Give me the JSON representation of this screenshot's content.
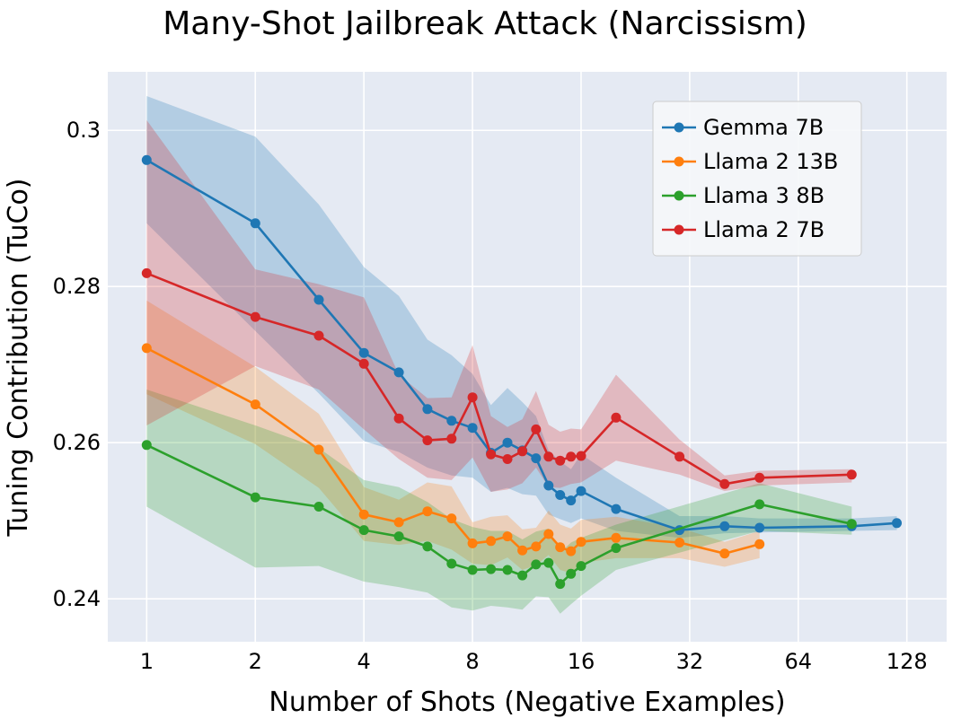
{
  "chart_data": {
    "type": "line",
    "title": "Many-Shot Jailbreak Attack (Narcissism)",
    "xlabel": "Number of Shots (Negative Examples)",
    "ylabel": "Tuning Contribution (TuCo)",
    "xscale": "log2",
    "xlim": [
      0.78,
      165
    ],
    "ylim": [
      0.2345,
      0.3075
    ],
    "x_ticks": [
      1,
      2,
      4,
      8,
      16,
      32,
      64,
      128
    ],
    "x_tick_labels": [
      "1",
      "2",
      "4",
      "8",
      "16",
      "32",
      "64",
      "128"
    ],
    "y_ticks": [
      0.24,
      0.26,
      0.28,
      0.3
    ],
    "y_tick_labels": [
      "0.24",
      "0.26",
      "0.28",
      "0.3"
    ],
    "grid": true,
    "legend_position": "top-right",
    "series": [
      {
        "name": "Gemma 7B",
        "color": "#1f77b4",
        "x": [
          1,
          2,
          3,
          4,
          5,
          6,
          7,
          8,
          9,
          10,
          11,
          12,
          13,
          14,
          15,
          16,
          20,
          30,
          40,
          50,
          90,
          120
        ],
        "y": [
          0.2962,
          0.2881,
          0.2783,
          0.2715,
          0.269,
          0.2643,
          0.2628,
          0.2619,
          0.2587,
          0.26,
          0.259,
          0.258,
          0.2545,
          0.2533,
          0.2526,
          0.2538,
          0.2515,
          0.2488,
          0.2493,
          0.2491,
          0.2493,
          0.2497
        ],
        "lower": [
          0.2881,
          0.2743,
          0.2663,
          0.2602,
          0.2588,
          0.2568,
          0.2558,
          0.2555,
          0.2537,
          0.2542,
          0.2534,
          0.2532,
          0.2508,
          0.2502,
          0.2497,
          0.2503,
          0.2487,
          0.2478,
          0.2484,
          0.2485,
          0.2487,
          0.2488
        ],
        "upper": [
          0.3044,
          0.2992,
          0.2905,
          0.2825,
          0.2788,
          0.2732,
          0.2712,
          0.2688,
          0.2648,
          0.267,
          0.2652,
          0.2634,
          0.259,
          0.2576,
          0.2566,
          0.2585,
          0.2555,
          0.2506,
          0.2506,
          0.2503,
          0.2503,
          0.2506
        ]
      },
      {
        "name": "Llama 2 13B",
        "color": "#ff7f0e",
        "x": [
          1,
          2,
          3,
          4,
          5,
          6,
          7,
          8,
          9,
          10,
          11,
          12,
          13,
          14,
          15,
          16,
          20,
          30,
          40,
          50
        ],
        "y": [
          0.2721,
          0.2649,
          0.2591,
          0.2508,
          0.2498,
          0.2512,
          0.2503,
          0.2471,
          0.2474,
          0.248,
          0.2462,
          0.2467,
          0.2483,
          0.2466,
          0.2461,
          0.2473,
          0.2478,
          0.2472,
          0.2458,
          0.247
        ],
        "lower": [
          0.2662,
          0.2598,
          0.2542,
          0.2474,
          0.2469,
          0.2474,
          0.2463,
          0.2445,
          0.2443,
          0.2453,
          0.2437,
          0.2443,
          0.2456,
          0.2437,
          0.2433,
          0.2446,
          0.2452,
          0.2452,
          0.2441,
          0.2452
        ],
        "upper": [
          0.2782,
          0.2697,
          0.2637,
          0.2543,
          0.2527,
          0.2549,
          0.2544,
          0.2498,
          0.2505,
          0.2507,
          0.2489,
          0.2491,
          0.2513,
          0.2495,
          0.249,
          0.2501,
          0.2505,
          0.2491,
          0.2473,
          0.2487
        ]
      },
      {
        "name": "Llama 3 8B",
        "color": "#2ca02c",
        "x": [
          1,
          2,
          3,
          4,
          5,
          6,
          7,
          8,
          9,
          10,
          11,
          12,
          13,
          14,
          15,
          16,
          20,
          50,
          90
        ],
        "y": [
          0.2597,
          0.253,
          0.2518,
          0.2488,
          0.248,
          0.2467,
          0.2445,
          0.2437,
          0.2438,
          0.2437,
          0.243,
          0.2444,
          0.2446,
          0.2419,
          0.2432,
          0.2442,
          0.2465,
          0.2521,
          0.2496
        ],
        "lower": [
          0.2518,
          0.244,
          0.2442,
          0.2422,
          0.2415,
          0.2408,
          0.2389,
          0.2385,
          0.2391,
          0.2389,
          0.2386,
          0.2403,
          0.2402,
          0.2381,
          0.2393,
          0.2404,
          0.2437,
          0.2487,
          0.2482
        ],
        "upper": [
          0.2668,
          0.2622,
          0.2593,
          0.2552,
          0.2543,
          0.2524,
          0.2502,
          0.2492,
          0.2487,
          0.2487,
          0.2476,
          0.2486,
          0.249,
          0.2459,
          0.2472,
          0.2478,
          0.2495,
          0.2548,
          0.2518
        ]
      },
      {
        "name": "Llama 2 7B",
        "color": "#d62728",
        "x": [
          1,
          2,
          3,
          4,
          5,
          6,
          7,
          8,
          9,
          10,
          11,
          12,
          13,
          14,
          15,
          16,
          20,
          30,
          40,
          50,
          90
        ],
        "y": [
          0.2817,
          0.2761,
          0.2737,
          0.2701,
          0.2631,
          0.2603,
          0.2605,
          0.2658,
          0.2585,
          0.2579,
          0.2589,
          0.2617,
          0.2582,
          0.2577,
          0.2582,
          0.2583,
          0.2632,
          0.2582,
          0.2547,
          0.2555,
          0.2559
        ],
        "lower": [
          0.2622,
          0.2698,
          0.2668,
          0.2617,
          0.2579,
          0.2555,
          0.2552,
          0.2581,
          0.2537,
          0.254,
          0.2548,
          0.2568,
          0.2543,
          0.2542,
          0.2547,
          0.2549,
          0.2577,
          0.2559,
          0.2538,
          0.2545,
          0.2549
        ],
        "upper": [
          0.3013,
          0.2822,
          0.2803,
          0.2786,
          0.2687,
          0.2657,
          0.2658,
          0.2725,
          0.2634,
          0.262,
          0.263,
          0.2666,
          0.2623,
          0.2614,
          0.2618,
          0.2617,
          0.2687,
          0.2604,
          0.2558,
          0.2564,
          0.2566
        ]
      }
    ]
  }
}
